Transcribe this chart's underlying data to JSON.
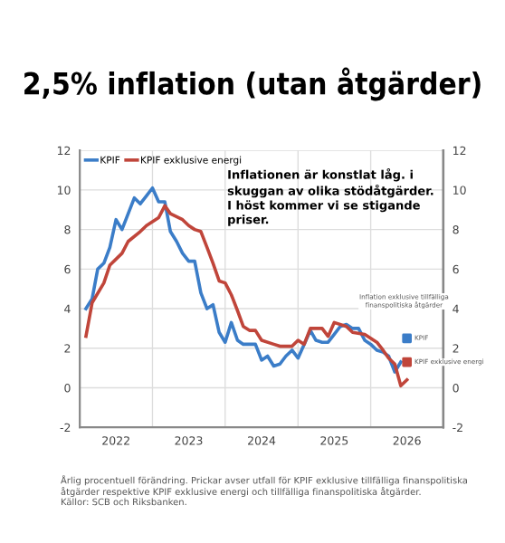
{
  "chart_data": {
    "type": "line",
    "title": "2,5% inflation (utan åtgärder)",
    "annotations": [
      "Inflationen är konstlat låg. i\nskuggan av olika stödåtgärder.\nI höst kommer vi se stigande\npriser.",
      "Årlig procentuell förändring. Prickar avser utfall för KPIF exklusive tillfälliga finanspolitiska åtgärder respektive KPIF exklusive energi och tillfälliga finanspolitiska åtgärder.\nKällor: SCB och Riksbanken.",
      "Inflation exklusive tillfälliga\nfinanspolitiska åtgärder",
      {
        "text": "KPIF",
        "x": "2026-06",
        "y": 2.5
      },
      {
        "text": "KPIF exklusive energi",
        "x": "2026-06",
        "y": 1.3
      }
    ],
    "series": [
      {
        "name": "KPIF",
        "color": "#3b7dc8",
        "x": [
          "2022-01",
          "2022-02",
          "2022-03",
          "2022-04",
          "2022-05",
          "2022-06",
          "2022-07",
          "2022-08",
          "2022-09",
          "2022-10",
          "2022-11",
          "2022-12",
          "2023-01",
          "2023-02",
          "2023-03",
          "2023-04",
          "2023-05",
          "2023-06",
          "2023-07",
          "2023-08",
          "2023-09",
          "2023-10",
          "2023-11",
          "2023-12",
          "2024-01",
          "2024-02",
          "2024-03",
          "2024-04",
          "2024-05",
          "2024-06",
          "2024-07",
          "2024-08",
          "2024-09",
          "2024-10",
          "2024-11",
          "2024-12",
          "2025-01",
          "2025-02",
          "2025-03",
          "2025-04",
          "2025-05",
          "2025-06",
          "2025-07",
          "2025-08",
          "2025-09",
          "2025-10",
          "2025-11",
          "2025-12",
          "2026-01",
          "2026-02",
          "2026-03",
          "2026-04",
          "2026-05"
        ],
        "values": [
          4.0,
          4.5,
          6.0,
          6.3,
          7.1,
          8.5,
          8.0,
          8.8,
          9.6,
          9.3,
          9.7,
          10.1,
          9.4,
          9.4,
          7.9,
          7.4,
          6.8,
          6.4,
          6.4,
          4.8,
          4.0,
          4.2,
          2.8,
          2.3,
          3.3,
          2.4,
          2.2,
          2.2,
          2.2,
          1.4,
          1.6,
          1.1,
          1.2,
          1.6,
          1.9,
          1.5,
          2.2,
          2.9,
          2.4,
          2.3,
          2.3,
          2.7,
          3.1,
          3.2,
          3.0,
          3.0,
          2.4,
          2.2,
          1.9,
          1.8,
          1.6,
          0.8,
          1.3
        ]
      },
      {
        "name": "KPIF exklusive energi",
        "color": "#c0453a",
        "x": [
          "2022-01",
          "2022-02",
          "2022-04",
          "2022-05",
          "2022-07",
          "2022-08",
          "2022-10",
          "2022-11",
          "2023-01",
          "2023-02",
          "2023-03",
          "2023-05",
          "2023-06",
          "2023-07",
          "2023-08",
          "2023-09",
          "2023-10",
          "2023-11",
          "2023-12",
          "2024-01",
          "2024-02",
          "2024-03",
          "2024-04",
          "2024-05",
          "2024-06",
          "2024-08",
          "2024-09",
          "2024-11",
          "2024-12",
          "2025-01",
          "2025-02",
          "2025-04",
          "2025-05",
          "2025-06",
          "2025-08",
          "2025-09",
          "2025-11",
          "2026-01",
          "2026-02",
          "2026-03",
          "2026-04",
          "2026-05",
          "2026-06"
        ],
        "values": [
          2.6,
          4.3,
          5.3,
          6.2,
          6.8,
          7.4,
          7.9,
          8.2,
          8.6,
          9.2,
          8.8,
          8.5,
          8.2,
          8.0,
          7.9,
          7.1,
          6.3,
          5.4,
          5.3,
          4.7,
          3.9,
          3.1,
          2.9,
          2.9,
          2.4,
          2.2,
          2.1,
          2.1,
          2.4,
          2.2,
          3.0,
          3.0,
          2.6,
          3.3,
          3.1,
          2.8,
          2.7,
          2.3,
          1.9,
          1.5,
          1.2,
          0.1,
          0.4
        ]
      },
      {
        "type": "scatter",
        "color": "#3b7dc8",
        "marker": "square",
        "x": [
          "2026-06"
        ],
        "values": [
          2.5
        ]
      },
      {
        "type": "scatter",
        "color": "#c0453a",
        "marker": "square",
        "x": [
          "2026-06"
        ],
        "values": [
          1.3
        ]
      }
    ],
    "xlim": [
      "2021-12",
      "2026-12"
    ],
    "xticks": [
      {
        "value": "2022-06",
        "label": "2022"
      },
      {
        "value": "2022-12",
        "label": null
      },
      {
        "value": "2023-06",
        "label": "2023"
      },
      {
        "value": "2023-12",
        "label": null
      },
      {
        "value": "2024-06",
        "label": "2024"
      },
      {
        "value": "2024-12",
        "label": null
      },
      {
        "value": "2025-06",
        "label": "2025"
      },
      {
        "value": "2025-12",
        "label": null
      },
      {
        "value": "2026-06",
        "label": "2026"
      }
    ],
    "ylim": [
      -2,
      12
    ],
    "yticks": [
      -2,
      0,
      2,
      4,
      6,
      8,
      10,
      12
    ],
    "y2lim": [
      -2,
      12
    ],
    "y2ticks": [
      -2,
      0,
      2,
      4,
      6,
      8,
      10,
      12
    ],
    "grid": true,
    "legend": "top left",
    "marker": "none",
    "line_style": "solid"
  }
}
